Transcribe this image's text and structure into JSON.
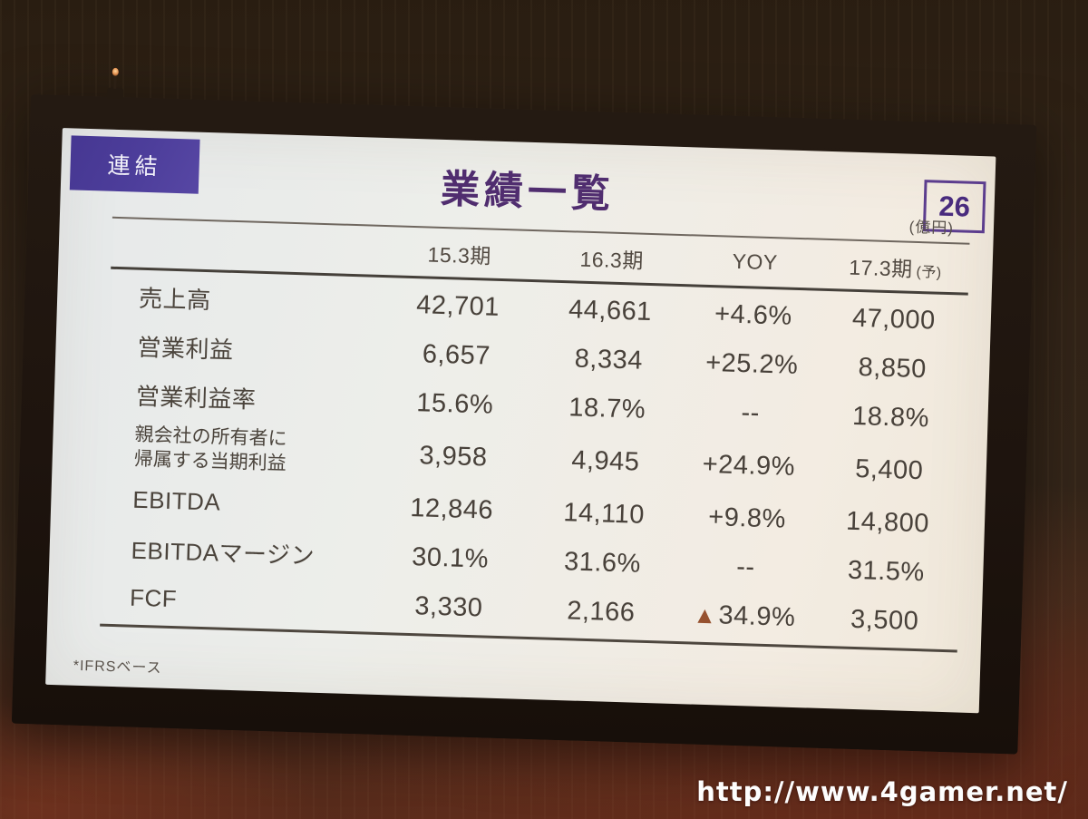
{
  "photo": {
    "watermark_url": "http://www.4gamer.net/"
  },
  "slide": {
    "badge_label": "連結",
    "title": "業績一覧",
    "page_number": "26",
    "unit_label": "(億円)",
    "footnote": "*IFRSベース"
  },
  "chart_data": {
    "type": "table",
    "title": "業績一覧",
    "unit": "億円",
    "note": "*IFRSベース",
    "columns": [
      {
        "label": "15.3期"
      },
      {
        "label": "16.3期"
      },
      {
        "label": "YOY"
      },
      {
        "label": "17.3期",
        "suffix": "(予)"
      }
    ],
    "rows": [
      {
        "label": "売上高",
        "values": [
          "42,701",
          "44,661",
          "+4.6%",
          "47,000"
        ]
      },
      {
        "label": "営業利益",
        "values": [
          "6,657",
          "8,334",
          "+25.2%",
          "8,850"
        ]
      },
      {
        "label": "営業利益率",
        "values": [
          "15.6%",
          "18.7%",
          "--",
          "18.8%"
        ]
      },
      {
        "label": "親会社の所有者に帰属する当期利益",
        "label_lines": [
          "親会社の所有者に",
          "帰属する当期利益"
        ],
        "values": [
          "3,958",
          "4,945",
          "+24.9%",
          "5,400"
        ]
      },
      {
        "label": "EBITDA",
        "values": [
          "12,846",
          "14,110",
          "+9.8%",
          "14,800"
        ]
      },
      {
        "label": "EBITDAマージン",
        "values": [
          "30.1%",
          "31.6%",
          "--",
          "31.5%"
        ]
      },
      {
        "label": "FCF",
        "values": [
          "3,330",
          "2,166",
          "▲34.9%",
          "3,500"
        ]
      }
    ]
  },
  "colors": {
    "badge_purple": "#4d3e9b",
    "title_purple": "#502d6f",
    "negative_triangle": "#96512f",
    "slide_text": "#48413a"
  }
}
